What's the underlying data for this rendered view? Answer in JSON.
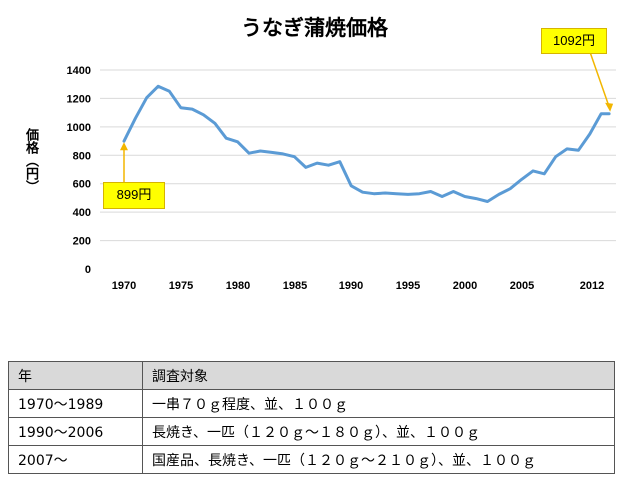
{
  "chart_data": {
    "type": "line",
    "title": "うなぎ蒲焼価格",
    "ylabel": "価格（円）",
    "xlabel": "",
    "ylim": [
      0,
      1400
    ],
    "yticks": [
      0,
      200,
      400,
      600,
      800,
      1000,
      1200,
      1400
    ],
    "xlim": [
      1969,
      2013
    ],
    "xticks": [
      "1970",
      "1975",
      "1980",
      "1985",
      "1990",
      "1995",
      "2000",
      "2005",
      "2012"
    ],
    "grid": true,
    "line_color": "#5b9bd5",
    "series": [
      {
        "x": [
          1970,
          1971,
          1972,
          1973,
          1974,
          1975,
          1976,
          1977,
          1978,
          1979,
          1980,
          1981,
          1982,
          1983,
          1984,
          1985,
          1986,
          1987,
          1988,
          1989,
          1990,
          1991,
          1992,
          1993,
          1994,
          1995,
          1996,
          1997,
          1998,
          1999,
          2000,
          2001,
          2002,
          2003,
          2004,
          2005,
          2006,
          2007,
          2008,
          2009,
          2010,
          2011,
          2012,
          2013
        ],
        "y": [
          899,
          1060,
          1205,
          1285,
          1250,
          1135,
          1125,
          1085,
          1025,
          920,
          895,
          815,
          830,
          820,
          810,
          790,
          715,
          745,
          730,
          755,
          585,
          540,
          530,
          535,
          530,
          525,
          530,
          545,
          510,
          545,
          510,
          495,
          475,
          525,
          565,
          630,
          690,
          670,
          790,
          845,
          835,
          950,
          1092,
          1092
        ]
      }
    ],
    "annotations": [
      {
        "label": "899円",
        "x": 1970,
        "y": 899
      },
      {
        "label": "1092円",
        "x": 2013,
        "y": 1092
      }
    ]
  },
  "table": {
    "headers": [
      "年",
      "調査対象"
    ],
    "rows": [
      [
        "1970～1989",
        "一串７０ｇ程度、並、１００ｇ"
      ],
      [
        "1990～2006",
        "長焼き、一匹（１２０ｇ～１８０ｇ）、並、１００ｇ"
      ],
      [
        "2007～",
        "国産品、長焼き、一匹（１２０ｇ～２１０ｇ）、並、１００ｇ"
      ]
    ],
    "header_bg": "#d9d9d9"
  }
}
